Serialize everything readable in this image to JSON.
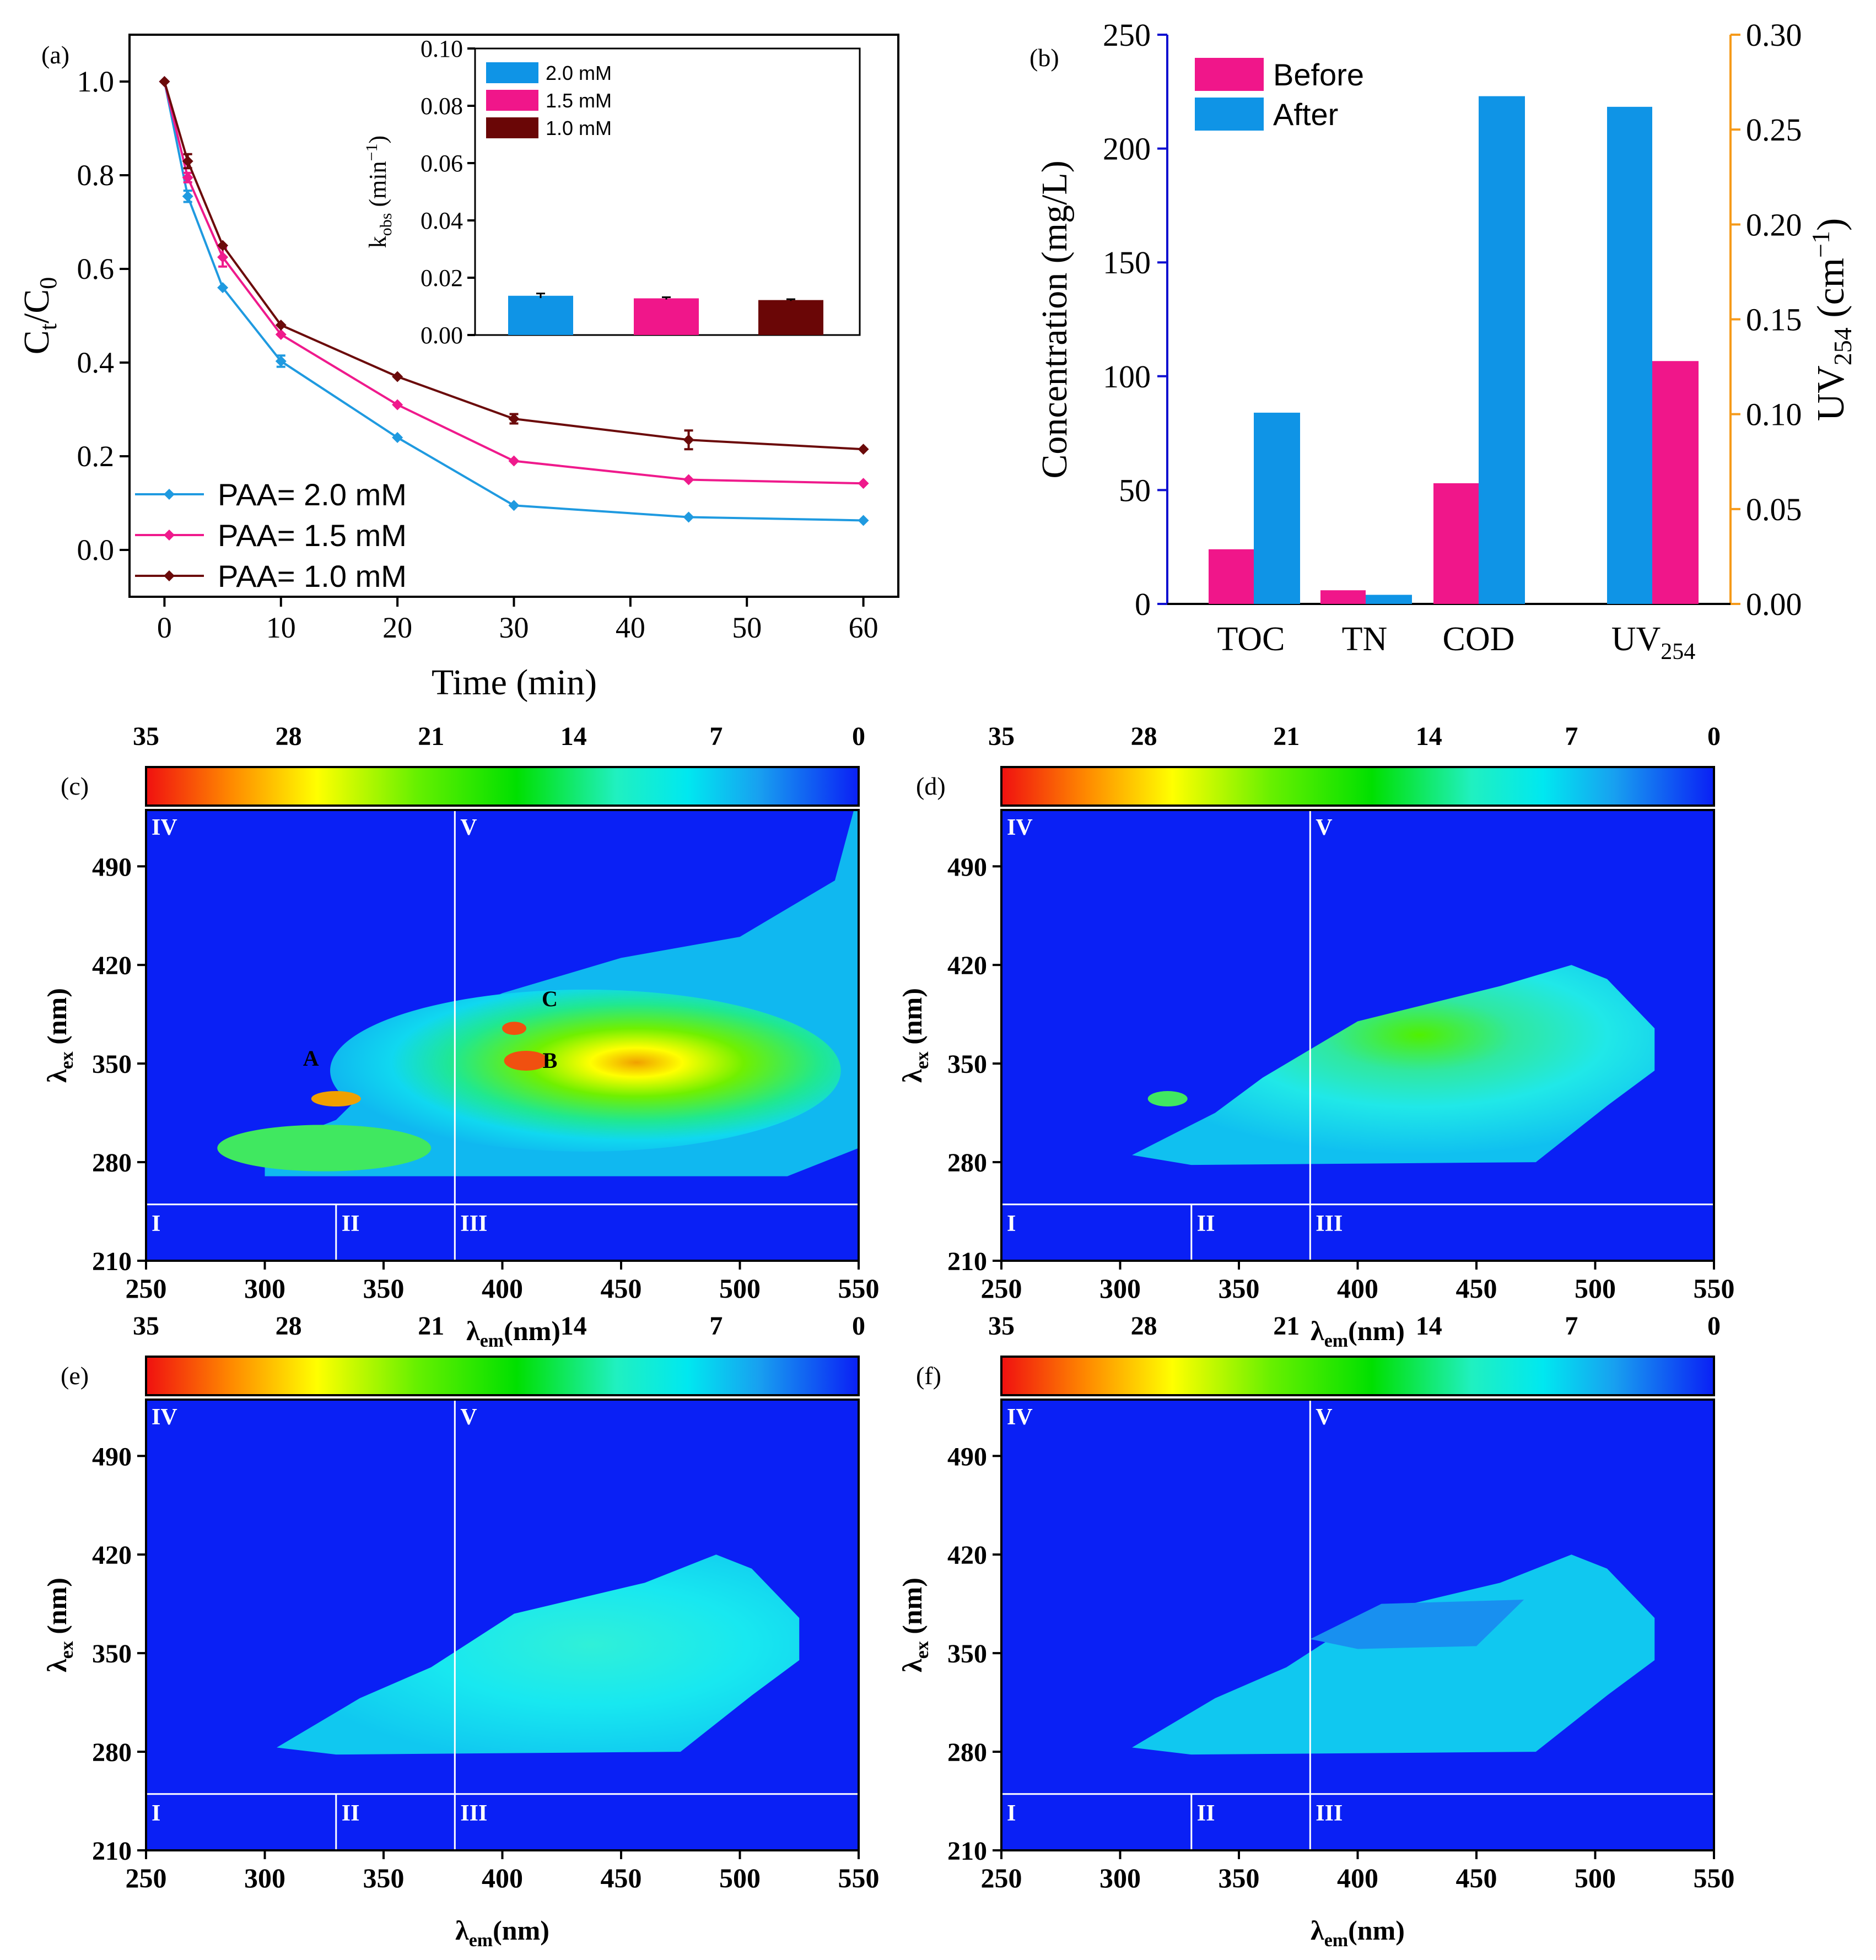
{
  "colors": {
    "blue": "#1f9ae0",
    "pink": "#ef1a8c",
    "maroon": "#6b0a0a",
    "bar_blue": "#0f94e6",
    "bar_pink": "#f0168a",
    "bar_maroon": "#6a0606",
    "orange_axis": "#f59a1a",
    "eem_bg": "#0a20f5",
    "grid_line": "#ffffff"
  },
  "chart_data": [
    {
      "id": "a",
      "type": "line",
      "panel_label": "(a)",
      "xlabel": "Time (min)",
      "ylabel_main": "C",
      "ylabel_sub1": "t",
      "ylabel_sep": "/C",
      "ylabel_sub2": "0",
      "xlim": [
        -3,
        63
      ],
      "ylim": [
        -0.1,
        1.1
      ],
      "xticks": [
        0,
        10,
        20,
        30,
        40,
        50,
        60
      ],
      "yticks": [
        0.0,
        0.2,
        0.4,
        0.6,
        0.8,
        1.0
      ],
      "x": [
        0,
        2,
        5,
        10,
        20,
        30,
        45,
        60
      ],
      "series": [
        {
          "name": "PAA= 2.0 mM",
          "color": "#1f9ae0",
          "values": [
            1.0,
            0.755,
            0.56,
            0.403,
            0.24,
            0.095,
            0.07,
            0.063
          ],
          "errors": [
            0,
            0.012,
            0,
            0.012,
            0,
            0,
            0,
            0
          ]
        },
        {
          "name": "PAA= 1.5 mM",
          "color": "#ef1a8c",
          "values": [
            1.0,
            0.795,
            0.625,
            0.46,
            0.31,
            0.19,
            0.15,
            0.142
          ],
          "errors": [
            0,
            0.01,
            0.02,
            0,
            0,
            0,
            0,
            0
          ]
        },
        {
          "name": "PAA= 1.0 mM",
          "color": "#6b0a0a",
          "values": [
            1.0,
            0.83,
            0.65,
            0.48,
            0.37,
            0.28,
            0.235,
            0.215
          ],
          "errors": [
            0,
            0.015,
            0,
            0,
            0,
            0.01,
            0.02,
            0
          ]
        }
      ],
      "legend": [
        "PAA= 2.0 mM",
        "PAA= 1.5 mM",
        "PAA= 1.0 mM"
      ],
      "inset": {
        "type": "bar",
        "ylabel": "k",
        "ylabel_sub": "obs",
        "ylabel_unit": " (min",
        "ylabel_sup": "−1",
        "ylabel_close": ")",
        "ylim": [
          0,
          0.1
        ],
        "yticks": [
          "0.00",
          "0.02",
          "0.04",
          "0.06",
          "0.08",
          "0.10"
        ],
        "categories": [
          "2.0 mM",
          "1.5 mM",
          "1.0 mM"
        ],
        "values": [
          0.0137,
          0.0128,
          0.0122
        ],
        "errors": [
          0.0008,
          0.0004,
          0.0003
        ],
        "legend": [
          "2.0 mM",
          "1.5 mM",
          "1.0 mM"
        ]
      }
    },
    {
      "id": "b",
      "type": "bar",
      "panel_label": "(b)",
      "categories": [
        "TOC",
        "TN",
        "COD",
        "UV"
      ],
      "category_sub": "254",
      "series": [
        {
          "name": "Before",
          "values": [
            24,
            6,
            53,
            0.128
          ],
          "axis": [
            "left",
            "left",
            "left",
            "right"
          ]
        },
        {
          "name": "After",
          "values": [
            84,
            4,
            223,
            0.262
          ],
          "axis": [
            "left",
            "left",
            "left",
            "right"
          ]
        }
      ],
      "ylabel": "Concentration (mg/L)",
      "ylim": [
        0,
        250
      ],
      "yticks": [
        "0",
        "50",
        "100",
        "150",
        "200",
        "250"
      ],
      "y2label": "UV",
      "y2label_sub": "254",
      "y2label_unit": " (cm",
      "y2label_sup": "−1",
      "y2label_close": ")",
      "y2lim": [
        0,
        0.3
      ],
      "y2ticks": [
        "0.00",
        "0.05",
        "0.10",
        "0.15",
        "0.20",
        "0.25",
        "0.30"
      ]
    },
    {
      "id": "c",
      "type": "heatmap",
      "panel_label": "(c)",
      "colorbar_ticks": [
        "35",
        "28",
        "21",
        "14",
        "7",
        "0"
      ],
      "xlim": [
        250,
        550
      ],
      "xticks": [
        "250",
        "300",
        "350",
        "400",
        "450",
        "500",
        "550"
      ],
      "ylim": [
        210,
        530
      ],
      "yticks": [
        "210",
        "280",
        "350",
        "420",
        "490"
      ],
      "xlabel": "λ",
      "xlabel_sub": "em",
      "xlabel_unit": "(nm)",
      "ylabel": "λ",
      "ylabel_sub": "ex",
      "ylabel_unit": " (nm)",
      "regions": [
        "I",
        "II",
        "III",
        "IV",
        "V"
      ],
      "region_x_lines": [
        330,
        380
      ],
      "region_y_line": 250,
      "peaks": [
        {
          "label": "A",
          "em": 330,
          "ex": 325
        },
        {
          "label": "B",
          "em": 410,
          "ex": 350
        },
        {
          "label": "C",
          "em": 405,
          "ex": 375
        }
      ]
    },
    {
      "id": "d",
      "type": "heatmap",
      "panel_label": "(d)",
      "colorbar_ticks": [
        "35",
        "28",
        "21",
        "14",
        "7",
        "0"
      ],
      "xlim": [
        250,
        550
      ],
      "xticks": [
        "250",
        "300",
        "350",
        "400",
        "450",
        "500",
        "550"
      ],
      "ylim": [
        210,
        530
      ],
      "yticks": [
        "210",
        "280",
        "350",
        "420",
        "490"
      ],
      "xlabel": "λ",
      "xlabel_sub": "em",
      "xlabel_unit": "(nm)",
      "ylabel": "λ",
      "ylabel_sub": "ex",
      "ylabel_unit": " (nm)",
      "regions": [
        "I",
        "II",
        "III",
        "IV",
        "V"
      ],
      "region_x_lines": [
        330,
        380
      ],
      "region_y_line": 250
    },
    {
      "id": "e",
      "type": "heatmap",
      "panel_label": "(e)",
      "colorbar_ticks": [
        "35",
        "28",
        "21",
        "14",
        "7",
        "0"
      ],
      "xlim": [
        250,
        550
      ],
      "xticks": [
        "250",
        "300",
        "350",
        "400",
        "450",
        "500",
        "550"
      ],
      "ylim": [
        210,
        530
      ],
      "yticks": [
        "210",
        "280",
        "350",
        "420",
        "490"
      ],
      "xlabel": "λ",
      "xlabel_sub": "em",
      "xlabel_unit": "(nm)",
      "ylabel": "λ",
      "ylabel_sub": "ex",
      "ylabel_unit": " (nm)",
      "regions": [
        "I",
        "II",
        "III",
        "IV",
        "V"
      ],
      "region_x_lines": [
        330,
        380
      ],
      "region_y_line": 250
    },
    {
      "id": "f",
      "type": "heatmap",
      "panel_label": "(f)",
      "colorbar_ticks": [
        "35",
        "28",
        "21",
        "14",
        "7",
        "0"
      ],
      "xlim": [
        250,
        550
      ],
      "xticks": [
        "250",
        "300",
        "350",
        "400",
        "450",
        "500",
        "550"
      ],
      "ylim": [
        210,
        530
      ],
      "yticks": [
        "210",
        "280",
        "350",
        "420",
        "490"
      ],
      "xlabel": "λ",
      "xlabel_sub": "em",
      "xlabel_unit": "(nm)",
      "ylabel": "λ",
      "ylabel_sub": "ex",
      "ylabel_unit": " (nm)",
      "regions": [
        "I",
        "II",
        "III",
        "IV",
        "V"
      ],
      "region_x_lines": [
        330,
        380
      ],
      "region_y_line": 250
    }
  ]
}
